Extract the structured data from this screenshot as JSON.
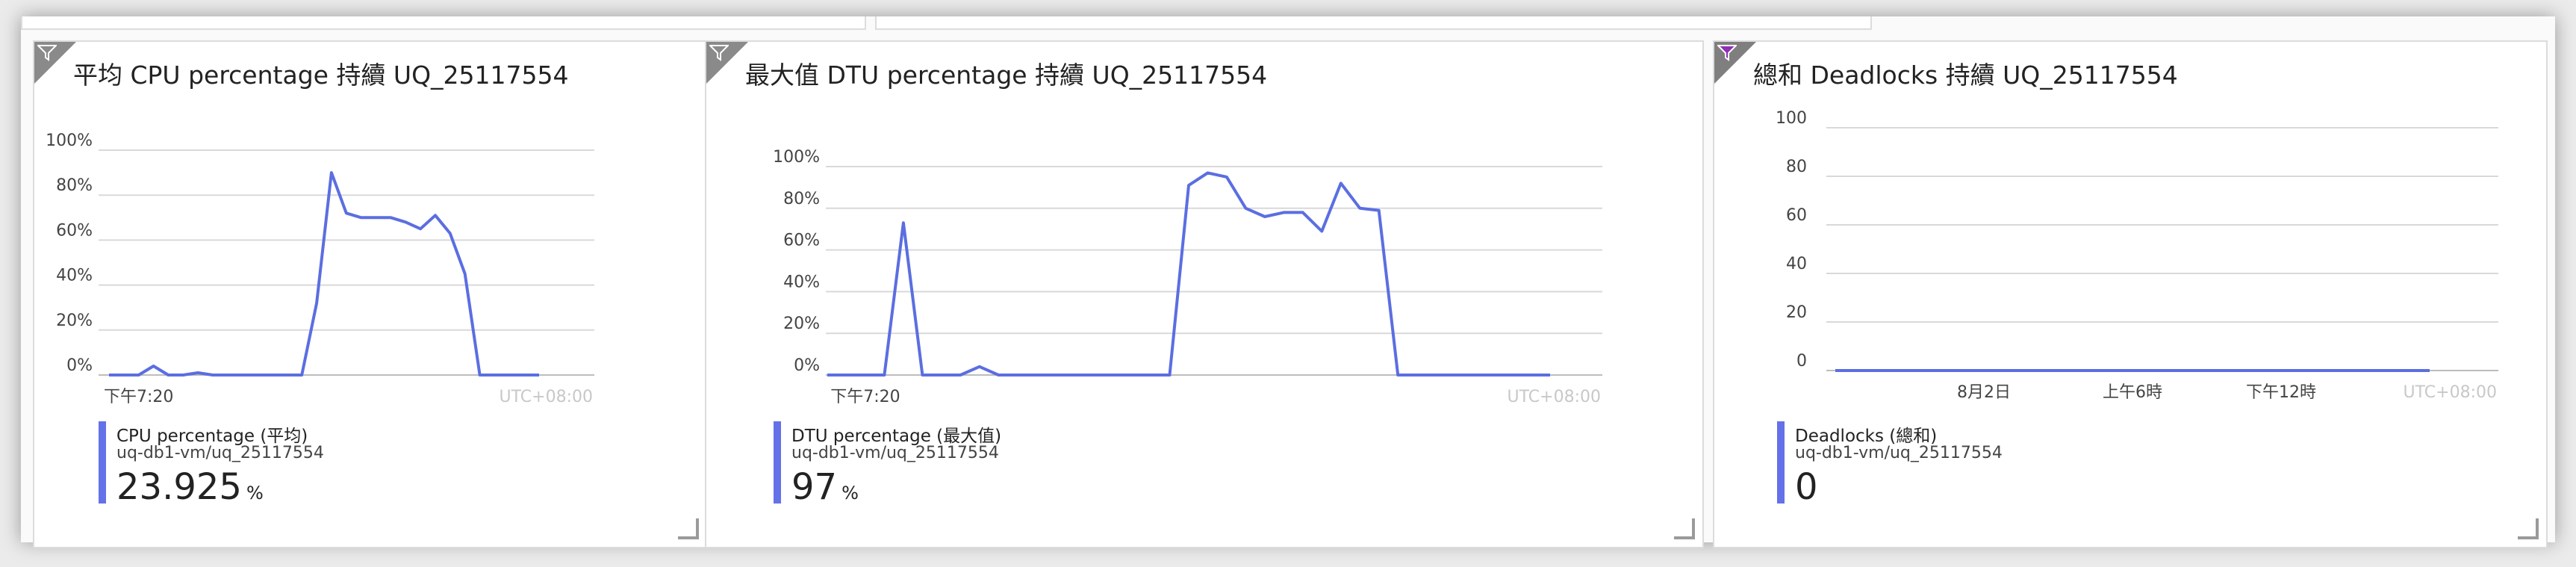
{
  "tiles": [
    {
      "title": "平均 CPU percentage 持續 UQ_25117554",
      "filter_icon": "funnel-icon",
      "legend": {
        "label": "CPU percentage (平均)",
        "resource": "uq-db1-vm/uq_25117554",
        "value": "23.925",
        "unit": "%"
      },
      "timezone": "UTC+08:00"
    },
    {
      "title": "最大值 DTU percentage 持續 UQ_25117554",
      "filter_icon": "funnel-icon",
      "legend": {
        "label": "DTU percentage (最大值)",
        "resource": "uq-db1-vm/uq_25117554",
        "value": "97",
        "unit": "%"
      },
      "timezone": "UTC+08:00"
    },
    {
      "title": "總和 Deadlocks 持續 UQ_25117554",
      "filter_icon": "funnel-icon",
      "filter_color": "#8e2fb5",
      "legend": {
        "label": "Deadlocks (總和)",
        "resource": "uq-db1-vm/uq_25117554",
        "value": "0",
        "unit": ""
      },
      "timezone": "UTC+08:00"
    }
  ],
  "chart_data": [
    {
      "type": "line",
      "title": "平均 CPU percentage 持續 UQ_25117554",
      "ylim": [
        0,
        100
      ],
      "ytick_labels": [
        "0%",
        "20%",
        "40%",
        "60%",
        "80%",
        "100%"
      ],
      "ytick_values": [
        0,
        20,
        40,
        60,
        80,
        100
      ],
      "xtick_labels": [
        "下午7:20"
      ],
      "xtick_positions": [
        2
      ],
      "grid": true,
      "color": "#5b6ee1",
      "series": [
        {
          "name": "CPU percentage (平均)",
          "values": [
            0,
            0,
            0,
            4,
            0,
            0,
            1,
            0,
            0,
            0,
            0,
            0,
            0,
            0,
            32,
            90,
            72,
            70,
            70,
            70,
            68,
            65,
            71,
            63,
            45,
            0,
            0,
            0,
            0,
            0
          ]
        }
      ]
    },
    {
      "type": "line",
      "title": "最大值 DTU percentage 持續 UQ_25117554",
      "ylim": [
        0,
        100
      ],
      "ytick_labels": [
        "0%",
        "20%",
        "40%",
        "60%",
        "80%",
        "100%"
      ],
      "ytick_values": [
        0,
        20,
        40,
        60,
        80,
        100
      ],
      "xtick_labels": [
        "下午7:20"
      ],
      "xtick_positions": [
        2
      ],
      "grid": true,
      "color": "#5b6ee1",
      "series": [
        {
          "name": "DTU percentage (最大值)",
          "values": [
            0,
            0,
            0,
            0,
            73,
            0,
            0,
            0,
            4,
            0,
            0,
            0,
            0,
            0,
            0,
            0,
            0,
            0,
            0,
            91,
            97,
            95,
            80,
            76,
            78,
            78,
            69,
            92,
            80,
            79,
            0,
            0,
            0,
            0,
            0,
            0,
            0,
            0,
            0
          ]
        }
      ]
    },
    {
      "type": "line",
      "title": "總和 Deadlocks 持續 UQ_25117554",
      "ylim": [
        0,
        100
      ],
      "ytick_labels": [
        "0",
        "20",
        "40",
        "60",
        "80",
        "100"
      ],
      "ytick_values": [
        0,
        20,
        40,
        60,
        80,
        100
      ],
      "xtick_labels": [
        "8月2日",
        "上午6時",
        "下午12時"
      ],
      "xtick_positions": [
        4,
        8,
        12
      ],
      "grid": true,
      "color": "#5b6ee1",
      "series": [
        {
          "name": "Deadlocks (總和)",
          "values": [
            0,
            0,
            0,
            0,
            0,
            0,
            0,
            0,
            0,
            0,
            0,
            0,
            0,
            0,
            0,
            0,
            0
          ]
        }
      ]
    }
  ]
}
